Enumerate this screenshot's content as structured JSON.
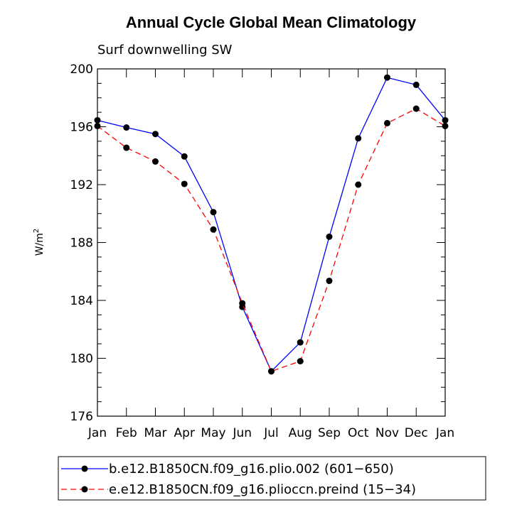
{
  "chart_data": {
    "type": "line",
    "title": "Annual Cycle Global Mean Climatology",
    "subtitle": "Surf downwelling SW",
    "ylabel": "W/m",
    "ylabel_sup": "2",
    "xlabel": "",
    "ylim": [
      176,
      200
    ],
    "yticks": [
      176,
      180,
      184,
      188,
      192,
      196,
      200
    ],
    "categories": [
      "Jan",
      "Feb",
      "Mar",
      "Apr",
      "May",
      "Jun",
      "Jul",
      "Aug",
      "Sep",
      "Oct",
      "Nov",
      "Dec",
      "Jan"
    ],
    "series": [
      {
        "name": "b.e12.B1850CN.f09_g16.plio.002 (601−650)",
        "color": "#0000ff",
        "dash": "solid",
        "values": [
          196.45,
          195.95,
          195.5,
          193.95,
          190.1,
          183.55,
          179.1,
          181.1,
          188.4,
          195.2,
          199.4,
          198.9,
          196.45
        ]
      },
      {
        "name": "e.e12.B1850CN.f09_g16.plioccn.preind (15−34)",
        "color": "#ff0000",
        "dash": "dashed",
        "values": [
          196.05,
          194.55,
          193.6,
          192.05,
          188.9,
          183.8,
          179.1,
          179.8,
          185.35,
          192.0,
          196.25,
          197.25,
          196.05
        ]
      }
    ]
  }
}
